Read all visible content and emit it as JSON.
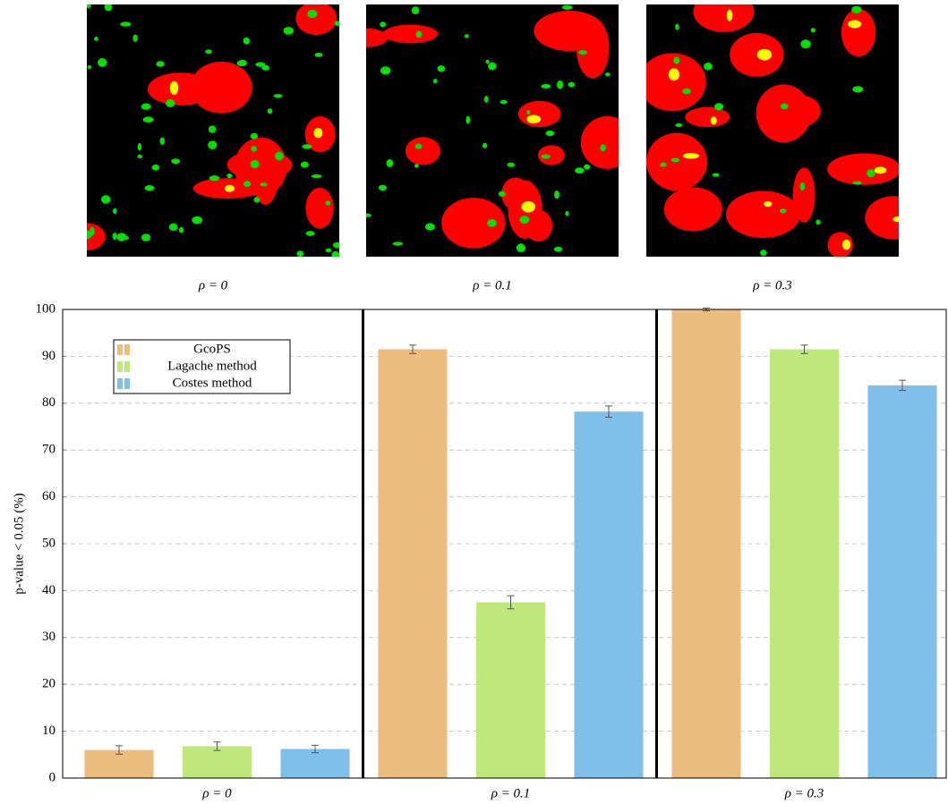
{
  "image_captions": [
    "ρ = 0",
    "ρ = 0.1",
    "ρ = 0.3"
  ],
  "chart_data": {
    "type": "bar",
    "y_label": "p-value < 0.05 (%)",
    "categories": [
      "ρ = 0",
      "ρ = 0.1",
      "ρ = 0.3"
    ],
    "series": [
      {
        "name": "GcoPS",
        "color": "#eabd7e",
        "values": [
          6,
          91.5,
          100
        ],
        "errors": [
          0.9,
          0.9,
          0.3
        ]
      },
      {
        "name": "Lagache method",
        "color": "#bfe87c",
        "values": [
          6.8,
          37.5,
          91.5
        ],
        "errors": [
          0.9,
          1.4,
          0.9
        ]
      },
      {
        "name": "Costes method",
        "color": "#80bfea",
        "values": [
          6.2,
          78.2,
          83.8
        ],
        "errors": [
          0.8,
          1.2,
          1.1
        ]
      }
    ],
    "ylim": [
      0,
      100
    ],
    "yticks": [
      0,
      10,
      20,
      30,
      40,
      50,
      60,
      70,
      80,
      90,
      100
    ],
    "grid": true,
    "legend": "upper left"
  }
}
